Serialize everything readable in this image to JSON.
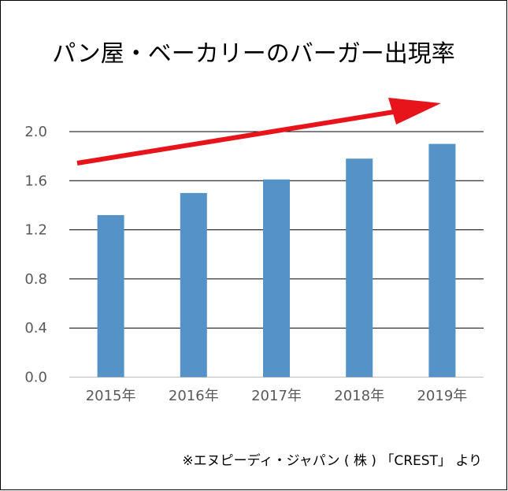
{
  "chart_data": {
    "type": "bar",
    "title": "パン屋・ベーカリーのバーガー出現率",
    "categories": [
      "2015年",
      "2016年",
      "2017年",
      "2018年",
      "2019年"
    ],
    "values": [
      1.32,
      1.5,
      1.61,
      1.78,
      1.9
    ],
    "ylim": [
      0,
      2.0
    ],
    "yticks": [
      "0.0",
      "0.4",
      "0.8",
      "1.2",
      "1.6",
      "2.0"
    ],
    "xlabel": "",
    "ylabel": "",
    "grid": true,
    "annotations": [
      "upward trend arrow"
    ],
    "source": "※エヌピーディ・ジャパン ( 株 ) 「CREST」 より",
    "colors": {
      "bar": "#5592C8",
      "arrow": "#E8141B",
      "grid": "#000000"
    }
  }
}
